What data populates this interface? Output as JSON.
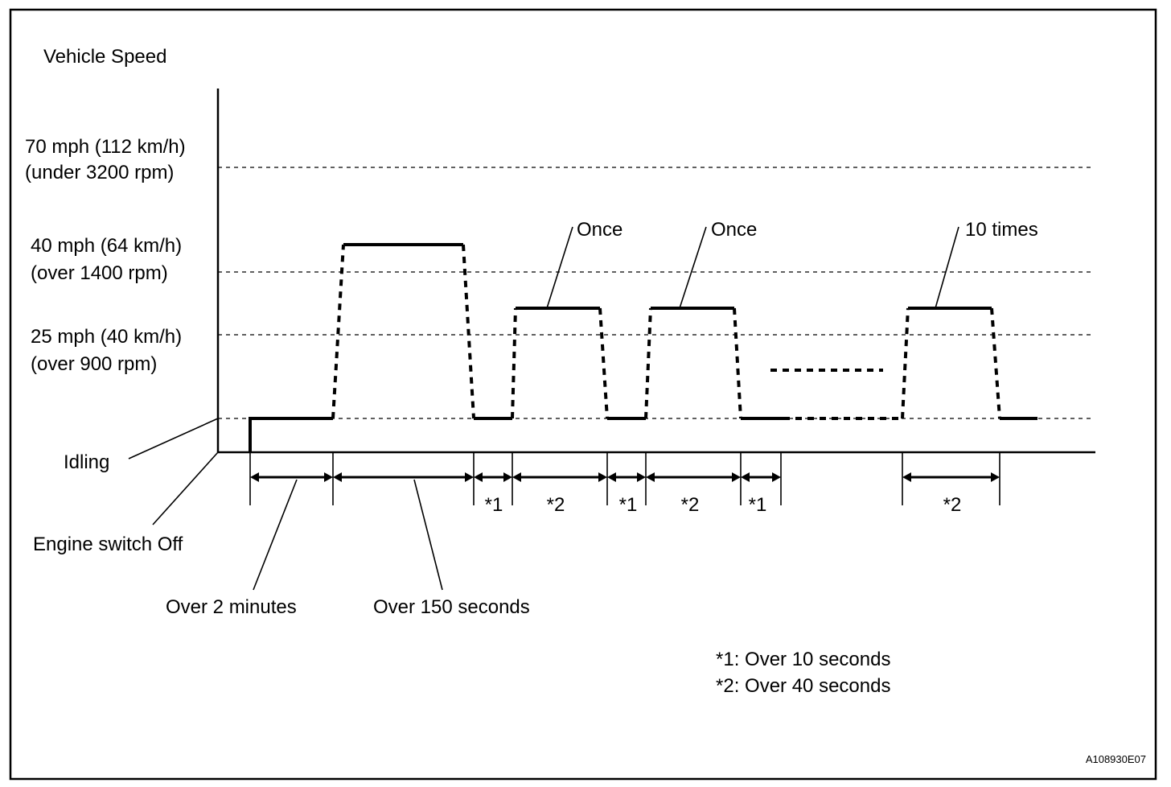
{
  "y_axis_title": "Vehicle Speed",
  "speed_levels": [
    {
      "line1": "70 mph (112 km/h)",
      "line2": "(under 3200 rpm)"
    },
    {
      "line1": "40 mph (64 km/h)",
      "line2": "(over 1400 rpm)"
    },
    {
      "line1": "25 mph (40 km/h)",
      "line2": "(over 900 rpm)"
    }
  ],
  "states": {
    "idling": "Idling",
    "engine_off": "Engine switch Off"
  },
  "repeat_callouts": [
    "Once",
    "Once",
    "10 times"
  ],
  "interval_markers": [
    "*1",
    "*2",
    "*1",
    "*2",
    "*1",
    "*2"
  ],
  "durations": {
    "first": "Over 2 minutes",
    "second": "Over 150 seconds"
  },
  "notes": {
    "note1": "*1: Over 10 seconds",
    "note2": "*2: Over 40 seconds"
  },
  "figure_code": "A108930E07"
}
